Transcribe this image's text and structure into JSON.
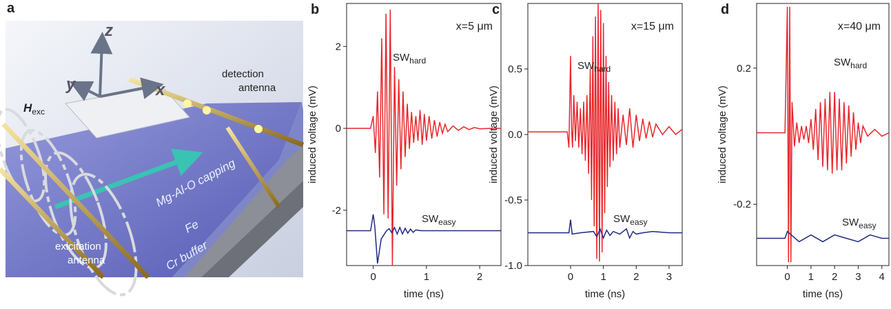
{
  "illustration": {
    "panel_label": "a",
    "axis_z": "z",
    "axis_y": "y",
    "axis_x": "x",
    "field_symbol": "H",
    "field_subscript": "exc",
    "detection_label": [
      "detection",
      "antenna"
    ],
    "excitation_label": [
      "exicitation",
      "antenna"
    ],
    "capping_label": "Mg-Al-O  capping",
    "fe_label": "Fe",
    "cr_label": "Cr buffer"
  },
  "chart_data": [
    {
      "type": "line",
      "panel_label": "b",
      "annotation": "x=5 μm",
      "xlabel": "time (ns)",
      "ylabel": "induced voltage (mV)",
      "xlim": [
        -0.5,
        2.4
      ],
      "xticks": [
        0,
        1,
        2
      ],
      "ylim": [
        -3.35,
        3.05
      ],
      "yticks": [
        -2,
        0,
        2
      ],
      "series": [
        {
          "name": "SW",
          "subscript": "hard",
          "color": "#e8262b",
          "x": [
            -0.5,
            -0.05,
            0.0,
            0.04,
            0.08,
            0.12,
            0.16,
            0.2,
            0.24,
            0.28,
            0.32,
            0.36,
            0.4,
            0.44,
            0.48,
            0.52,
            0.56,
            0.6,
            0.64,
            0.68,
            0.72,
            0.76,
            0.8,
            0.84,
            0.88,
            0.92,
            0.96,
            1.0,
            1.05,
            1.1,
            1.15,
            1.2,
            1.25,
            1.3,
            1.35,
            1.4,
            1.5,
            1.6,
            1.7,
            1.8,
            1.9,
            2.0,
            2.2,
            2.4
          ],
          "values": [
            0,
            0,
            0.3,
            -0.6,
            0.9,
            -1.2,
            2.2,
            -2.1,
            2.8,
            -2.2,
            2.9,
            -3.35,
            1.5,
            -1.4,
            1.2,
            -1.0,
            0.9,
            -0.7,
            0.6,
            -0.5,
            0.4,
            -0.35,
            0.3,
            -0.3,
            0.45,
            -0.4,
            0.35,
            -0.3,
            0.3,
            -0.25,
            0.2,
            -0.2,
            0.15,
            -0.12,
            0.1,
            -0.08,
            0.06,
            -0.05,
            0.04,
            -0.03,
            0.02,
            -0.01,
            0,
            0
          ]
        },
        {
          "name": "SW",
          "subscript": "easy",
          "color": "#1f2a80",
          "x": [
            -0.5,
            -0.05,
            0.0,
            0.03,
            0.08,
            0.15,
            0.25,
            0.3,
            0.35,
            0.4,
            0.45,
            0.5,
            0.55,
            0.6,
            0.65,
            0.7,
            0.75,
            0.8,
            0.9,
            1.2,
            2.4
          ],
          "values": [
            -2.5,
            -2.5,
            -2.1,
            -2.4,
            -3.3,
            -2.7,
            -2.5,
            -2.45,
            -2.55,
            -2.42,
            -2.58,
            -2.42,
            -2.58,
            -2.44,
            -2.56,
            -2.46,
            -2.54,
            -2.48,
            -2.5,
            -2.5,
            -2.5
          ]
        }
      ]
    },
    {
      "type": "line",
      "panel_label": "c",
      "annotation": "x=15 μm",
      "xlabel": "time (ns)",
      "ylabel": "induced voltage (mV)",
      "xlim": [
        -1.3,
        3.4
      ],
      "xticks": [
        0,
        1,
        2,
        3
      ],
      "ylim": [
        -1.0,
        1.0
      ],
      "yticks": [
        0.5,
        {
          "value": 0,
          "label": "0.0"
        },
        -0.5,
        {
          "value": -1,
          "label": "-1.0"
        }
      ],
      "series": [
        {
          "name": "SW",
          "subscript": "hard",
          "color": "#e8262b",
          "x": [
            -1.3,
            -0.1,
            -0.05,
            0,
            0.03,
            0.06,
            0.1,
            0.15,
            0.2,
            0.25,
            0.3,
            0.35,
            0.4,
            0.45,
            0.5,
            0.55,
            0.6,
            0.64,
            0.68,
            0.72,
            0.76,
            0.8,
            0.84,
            0.88,
            0.92,
            0.96,
            1.0,
            1.04,
            1.08,
            1.12,
            1.16,
            1.2,
            1.25,
            1.3,
            1.35,
            1.4,
            1.45,
            1.5,
            1.6,
            1.7,
            1.8,
            1.9,
            2.0,
            2.1,
            2.2,
            2.3,
            2.4,
            2.5,
            2.6,
            2.8,
            3.0,
            3.2,
            3.4
          ],
          "values": [
            0.02,
            0.02,
            -0.1,
            0.6,
            0.05,
            -0.1,
            0.3,
            -0.05,
            0.25,
            -0.1,
            0.2,
            -0.15,
            0.25,
            -0.2,
            0.3,
            -0.3,
            0.5,
            -0.5,
            0.75,
            -0.7,
            0.9,
            -0.95,
            1.0,
            -0.97,
            0.95,
            -0.9,
            0.85,
            -0.6,
            0.6,
            -0.4,
            0.4,
            -0.25,
            0.3,
            -0.2,
            0.25,
            -0.15,
            0.2,
            -0.1,
            0.15,
            -0.08,
            0.2,
            -0.1,
            0.15,
            -0.05,
            0.12,
            -0.03,
            0.1,
            -0.02,
            0.08,
            0,
            0.06,
            0,
            0.04
          ]
        },
        {
          "name": "SW",
          "subscript": "easy",
          "color": "#1f2a80",
          "x": [
            -1.3,
            -0.05,
            0.0,
            0.05,
            0.3,
            0.7,
            0.8,
            0.9,
            1.0,
            1.1,
            1.2,
            1.3,
            1.5,
            1.7,
            1.8,
            1.9,
            2.0,
            2.2,
            2.5,
            3.0,
            3.4
          ],
          "values": [
            -0.75,
            -0.75,
            -0.65,
            -0.76,
            -0.75,
            -0.74,
            -0.78,
            -0.72,
            -0.79,
            -0.73,
            -0.77,
            -0.74,
            -0.76,
            -0.72,
            -0.79,
            -0.74,
            -0.76,
            -0.75,
            -0.74,
            -0.75,
            -0.75
          ]
        }
      ]
    },
    {
      "type": "line",
      "panel_label": "d",
      "annotation": "x=40 μm",
      "xlabel": "time (ns)",
      "ylabel": "induced voltage (mV)",
      "xlim": [
        -1.3,
        4.3
      ],
      "xticks": [
        0,
        1,
        2,
        3,
        4
      ],
      "ylim": [
        -0.38,
        0.39
      ],
      "yticks": [
        -0.2,
        0.2
      ],
      "series": [
        {
          "name": "SW",
          "subscript": "hard",
          "color": "#e8262b",
          "x": [
            -1.3,
            -0.1,
            0,
            0.05,
            0.1,
            0.15,
            0.2,
            0.3,
            0.4,
            0.5,
            0.6,
            0.7,
            0.8,
            0.9,
            1.0,
            1.1,
            1.2,
            1.3,
            1.4,
            1.5,
            1.6,
            1.7,
            1.8,
            1.9,
            2.0,
            2.1,
            2.2,
            2.3,
            2.4,
            2.5,
            2.6,
            2.7,
            2.8,
            2.9,
            3.0,
            3.1,
            3.2,
            3.4,
            3.7,
            4.0,
            4.3
          ],
          "values": [
            0.01,
            0.01,
            0.38,
            -0.37,
            0.38,
            -0.37,
            0.1,
            -0.03,
            0.04,
            -0.02,
            0.03,
            -0.01,
            0.03,
            -0.02,
            0.05,
            -0.04,
            0.08,
            -0.07,
            0.1,
            -0.09,
            0.11,
            -0.1,
            0.13,
            -0.11,
            0.13,
            -0.1,
            0.11,
            -0.1,
            0.1,
            -0.08,
            0.09,
            -0.06,
            0.07,
            -0.04,
            0.04,
            -0.02,
            0.03,
            0,
            0.02,
            0,
            0.01
          ]
        },
        {
          "name": "SW",
          "subscript": "easy",
          "color": "#1f2a80",
          "x": [
            -1.3,
            -0.1,
            0.0,
            0.5,
            1.0,
            1.5,
            2.0,
            2.5,
            3.0,
            3.5,
            4.0,
            4.3
          ],
          "values": [
            -0.3,
            -0.3,
            -0.28,
            -0.31,
            -0.29,
            -0.31,
            -0.29,
            -0.3,
            -0.31,
            -0.29,
            -0.3,
            -0.3
          ]
        }
      ]
    }
  ]
}
